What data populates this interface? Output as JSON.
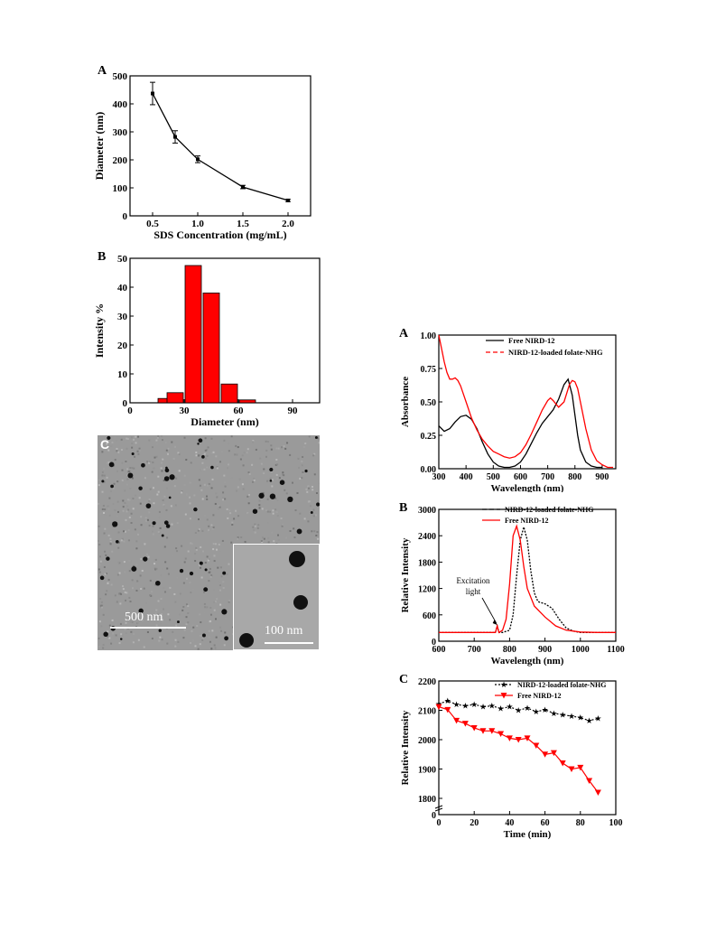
{
  "left": {
    "A": {
      "label": "A",
      "chart_data": {
        "type": "line",
        "x": [
          0.5,
          0.75,
          1.0,
          1.5,
          2.0
        ],
        "y": [
          437,
          282,
          202,
          103,
          55
        ],
        "err": [
          40,
          22,
          12,
          6,
          4
        ],
        "xlabel": "SDS Concentration (mg/mL)",
        "ylabel": "Diameter (nm)",
        "xlim": [
          0.25,
          2.25
        ],
        "ylim": [
          0,
          500
        ],
        "xticks": [
          "0.5",
          "1.0",
          "1.5",
          "2.0"
        ],
        "yticks": [
          "0",
          "100",
          "200",
          "300",
          "400",
          "500"
        ]
      }
    },
    "B": {
      "label": "B",
      "chart_data": {
        "type": "bar",
        "x": [
          20,
          25,
          35,
          45,
          55,
          65
        ],
        "values": [
          1.5,
          3.5,
          47.5,
          38,
          6.5,
          1
        ],
        "bar_width": 9,
        "xlabel": "Diameter (nm)",
        "ylabel": "Intensity %",
        "xlim": [
          0,
          105
        ],
        "ylim": [
          0,
          50
        ],
        "xticks": [
          "0",
          "30",
          "60",
          "90"
        ],
        "yticks": [
          "0",
          "10",
          "20",
          "30",
          "40",
          "50"
        ],
        "bar_color": "#ff0000"
      }
    },
    "C": {
      "label": "C",
      "scale_main": "500 nm",
      "scale_inset": "100 nm"
    }
  },
  "right": {
    "A": {
      "label": "A",
      "chart_data": {
        "type": "line",
        "xlabel": "Wavelength (nm)",
        "ylabel": "Absorbance",
        "xlim": [
          300,
          950
        ],
        "ylim": [
          0,
          1.0
        ],
        "xticks": [
          "300",
          "400",
          "500",
          "600",
          "700",
          "800",
          "900"
        ],
        "yticks": [
          "0.00",
          "0.25",
          "0.50",
          "0.75",
          "1.00"
        ],
        "series": [
          {
            "name": "Free NIRD-12",
            "color": "#000000",
            "dash": "solid",
            "x": [
              300,
              320,
              340,
              360,
              380,
              400,
              420,
              440,
              460,
              480,
              500,
              520,
              540,
              560,
              580,
              600,
              620,
              640,
              660,
              680,
              700,
              720,
              740,
              760,
              775,
              790,
              800,
              810,
              820,
              840,
              860,
              880,
              900
            ],
            "y": [
              0.32,
              0.28,
              0.3,
              0.35,
              0.39,
              0.4,
              0.37,
              0.3,
              0.2,
              0.11,
              0.05,
              0.02,
              0.01,
              0.01,
              0.02,
              0.05,
              0.11,
              0.19,
              0.27,
              0.34,
              0.39,
              0.44,
              0.52,
              0.63,
              0.67,
              0.55,
              0.4,
              0.25,
              0.14,
              0.05,
              0.02,
              0.01,
              0.01
            ]
          },
          {
            "name": "NIRD-12-loaded folate-NHG",
            "color": "#ff0000",
            "dash": "dash",
            "x": [
              300,
              310,
              320,
              330,
              340,
              350,
              360,
              370,
              380,
              400,
              420,
              440,
              460,
              480,
              500,
              520,
              540,
              560,
              580,
              600,
              620,
              640,
              660,
              680,
              700,
              710,
              720,
              740,
              760,
              780,
              790,
              800,
              810,
              820,
              840,
              860,
              880,
              900,
              920,
              940
            ],
            "y": [
              1.0,
              0.9,
              0.8,
              0.72,
              0.67,
              0.67,
              0.68,
              0.66,
              0.62,
              0.5,
              0.38,
              0.29,
              0.22,
              0.17,
              0.13,
              0.11,
              0.09,
              0.08,
              0.09,
              0.12,
              0.18,
              0.26,
              0.35,
              0.44,
              0.51,
              0.53,
              0.51,
              0.46,
              0.5,
              0.63,
              0.66,
              0.65,
              0.6,
              0.5,
              0.3,
              0.14,
              0.06,
              0.03,
              0.01,
              0.01
            ]
          }
        ]
      }
    },
    "B": {
      "label": "B",
      "annotation": [
        "Excitation",
        "light"
      ],
      "chart_data": {
        "type": "line",
        "xlabel": "Wavelength (nm)",
        "ylabel": "Relative Intensity",
        "xlim": [
          600,
          1100
        ],
        "ylim": [
          0,
          3000
        ],
        "xticks": [
          "600",
          "700",
          "800",
          "900",
          "1000",
          "1100"
        ],
        "yticks": [
          "0",
          "600",
          "1200",
          "1800",
          "2400",
          "3000"
        ],
        "series": [
          {
            "name": "NIRD-12-loaded folate-NHG",
            "color": "#000000",
            "dash": "dash",
            "x": [
              600,
              700,
              760,
              765,
              770,
              780,
              800,
              810,
              820,
              830,
              840,
              850,
              860,
              870,
              880,
              900,
              920,
              940,
              960,
              980,
              1000,
              1050,
              1100
            ],
            "y": [
              200,
              200,
              200,
              350,
              200,
              200,
              250,
              600,
              1500,
              2300,
              2600,
              2300,
              1600,
              1100,
              900,
              850,
              750,
              500,
              300,
              230,
              200,
              200,
              200
            ]
          },
          {
            "name": "Free NIRD-12",
            "color": "#ff0000",
            "dash": "solid",
            "x": [
              600,
              700,
              760,
              765,
              770,
              780,
              790,
              800,
              810,
              820,
              830,
              840,
              850,
              870,
              900,
              930,
              960,
              1000,
              1050,
              1100
            ],
            "y": [
              200,
              200,
              200,
              350,
              200,
              250,
              500,
              1300,
              2400,
              2620,
              2300,
              1700,
              1200,
              800,
              550,
              350,
              250,
              210,
              200,
              200
            ]
          }
        ]
      }
    },
    "C": {
      "label": "C",
      "chart_data": {
        "type": "line",
        "xlabel": "Time (min)",
        "ylabel": "Relative Intensity",
        "xlim": [
          0,
          100
        ],
        "ylim": [
          1800,
          2200
        ],
        "axis_break": true,
        "xticks": [
          "0",
          "20",
          "40",
          "60",
          "80",
          "100"
        ],
        "yticks": [
          "0",
          "1800",
          "1900",
          "2000",
          "2100",
          "2200"
        ],
        "series": [
          {
            "name": "NIRD-12-loaded folate-NHG",
            "color": "#000000",
            "marker": "star",
            "dash": "dash",
            "x": [
              0,
              5,
              10,
              15,
              20,
              25,
              30,
              35,
              40,
              45,
              50,
              55,
              60,
              65,
              70,
              75,
              80,
              85,
              90
            ],
            "y": [
              2122,
              2132,
              2120,
              2115,
              2120,
              2112,
              2115,
              2106,
              2112,
              2100,
              2108,
              2095,
              2102,
              2090,
              2085,
              2080,
              2075,
              2065,
              2072
            ]
          },
          {
            "name": "Free NIRD-12",
            "color": "#ff0000",
            "marker": "triangle-down",
            "dash": "solid",
            "x": [
              0,
              5,
              10,
              15,
              20,
              25,
              30,
              35,
              40,
              45,
              50,
              55,
              60,
              65,
              70,
              75,
              80,
              85,
              90
            ],
            "y": [
              2112,
              2102,
              2065,
              2055,
              2040,
              2030,
              2030,
              2020,
              2005,
              2000,
              2005,
              1980,
              1950,
              1955,
              1920,
              1900,
              1905,
              1860,
              1820
            ]
          }
        ]
      }
    }
  }
}
